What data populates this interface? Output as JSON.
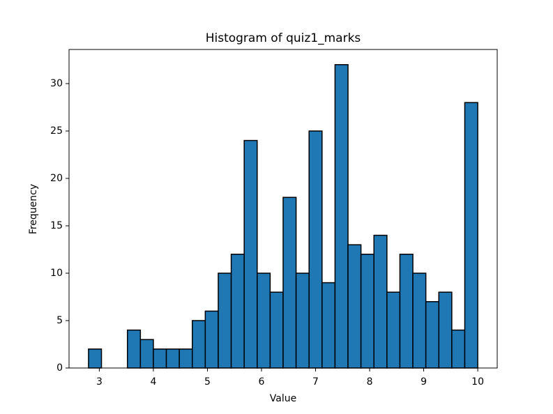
{
  "chart_data": {
    "type": "histogram",
    "title": "Histogram of quiz1_marks",
    "x_label": "Value",
    "y_label": "Frequency",
    "bins": [
      2.8,
      3.04,
      3.28,
      3.52,
      3.76,
      4,
      4.24,
      4.48,
      4.72,
      4.96,
      5.2,
      5.44,
      5.68,
      5.92,
      6.16,
      6.4,
      6.64,
      6.88,
      7.12,
      7.36,
      7.6,
      7.84,
      8.08,
      8.32,
      8.56,
      8.8,
      9.04,
      9.28,
      9.52,
      9.76,
      10
    ],
    "counts": [
      2,
      0,
      0,
      4,
      3,
      2,
      2,
      2,
      5,
      6,
      10,
      12,
      24,
      10,
      8,
      18,
      10,
      25,
      9,
      32,
      13,
      12,
      14,
      8,
      12,
      10,
      7,
      8,
      4,
      28
    ],
    "color": "#1f77b4",
    "edgecolor": "#000000",
    "xlim": [
      2.44,
      10.36
    ],
    "ylim": [
      0,
      33.6
    ],
    "xticks": [
      3,
      4,
      5,
      6,
      7,
      8,
      9,
      10
    ],
    "yticks": [
      0,
      5,
      10,
      15,
      20,
      25,
      30
    ]
  }
}
